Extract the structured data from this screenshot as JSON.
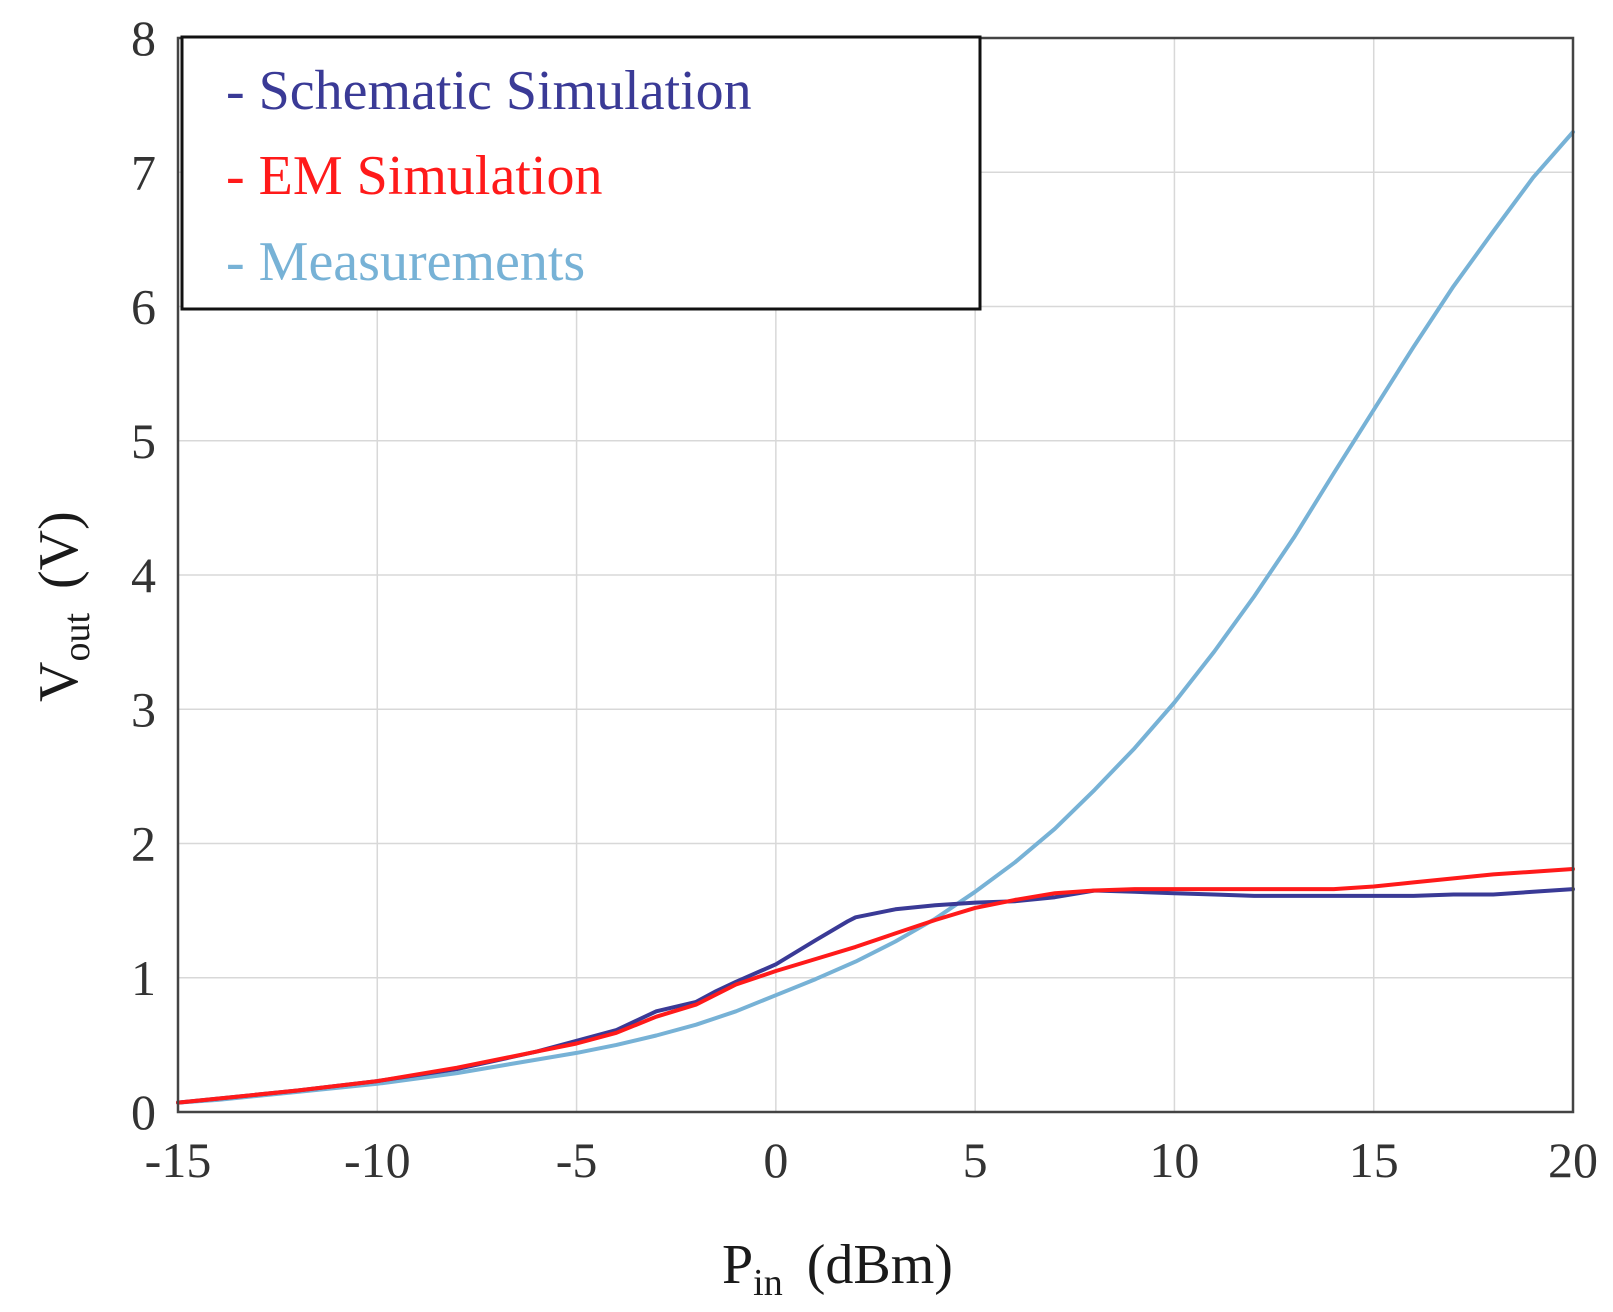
{
  "chart_data": {
    "type": "line",
    "xlabel": "P",
    "xlabel_sub": "in",
    "xlabel_unit": "(dBm)",
    "ylabel": "V",
    "ylabel_sub": "out",
    "ylabel_unit": "(V)",
    "xlim": [
      -15,
      20
    ],
    "ylim": [
      0,
      8
    ],
    "xticks": [
      -15,
      -10,
      -5,
      0,
      5,
      10,
      15,
      20
    ],
    "yticks": [
      0,
      1,
      2,
      3,
      4,
      5,
      6,
      7,
      8
    ],
    "grid": true,
    "legend_position": "top-left",
    "series": [
      {
        "name": "Schematic Simulation",
        "label": "- Schematic Simulation",
        "color": "#3a3a96",
        "x": [
          -15,
          -14,
          -12,
          -10,
          -8,
          -6,
          -5,
          -4,
          -3,
          -2,
          -1.5,
          -1,
          0,
          1,
          1.8,
          2,
          3,
          4,
          5,
          6,
          7,
          8,
          9,
          10,
          11,
          12,
          13,
          14,
          15,
          16,
          17,
          18,
          19,
          20
        ],
        "y": [
          0.07,
          0.1,
          0.16,
          0.23,
          0.32,
          0.45,
          0.53,
          0.61,
          0.75,
          0.82,
          0.9,
          0.97,
          1.1,
          1.28,
          1.42,
          1.45,
          1.51,
          1.54,
          1.56,
          1.57,
          1.6,
          1.65,
          1.64,
          1.63,
          1.62,
          1.61,
          1.61,
          1.61,
          1.61,
          1.61,
          1.62,
          1.62,
          1.64,
          1.66
        ]
      },
      {
        "name": "EM Simulation",
        "label": "- EM Simulation",
        "color": "#ff1a1a",
        "x": [
          -15,
          -14,
          -12,
          -10,
          -8,
          -6,
          -5,
          -4,
          -3,
          -2,
          -1,
          0,
          1,
          2,
          3,
          4,
          5,
          6,
          7,
          8,
          9,
          10,
          11,
          12,
          13,
          14,
          15,
          16,
          17,
          18,
          19,
          20
        ],
        "y": [
          0.07,
          0.1,
          0.16,
          0.23,
          0.33,
          0.45,
          0.51,
          0.59,
          0.71,
          0.8,
          0.95,
          1.05,
          1.14,
          1.23,
          1.33,
          1.43,
          1.52,
          1.58,
          1.63,
          1.65,
          1.66,
          1.66,
          1.66,
          1.66,
          1.66,
          1.66,
          1.68,
          1.71,
          1.74,
          1.77,
          1.79,
          1.81
        ]
      },
      {
        "name": "Measurements",
        "label": "- Measurements",
        "color": "#77b2d6",
        "x": [
          -15,
          -14,
          -12,
          -10,
          -8,
          -6,
          -5,
          -4,
          -3,
          -2,
          -1,
          0,
          1,
          2,
          3,
          4,
          5,
          6,
          7,
          8,
          9,
          10,
          11,
          12,
          13,
          14,
          15,
          16,
          17,
          18,
          19,
          20
        ],
        "y": [
          0.07,
          0.09,
          0.15,
          0.21,
          0.29,
          0.39,
          0.44,
          0.5,
          0.57,
          0.65,
          0.75,
          0.87,
          0.99,
          1.12,
          1.27,
          1.44,
          1.64,
          1.86,
          2.11,
          2.4,
          2.71,
          3.05,
          3.43,
          3.84,
          4.28,
          4.76,
          5.23,
          5.7,
          6.15,
          6.56,
          6.96,
          7.3
        ]
      }
    ]
  }
}
